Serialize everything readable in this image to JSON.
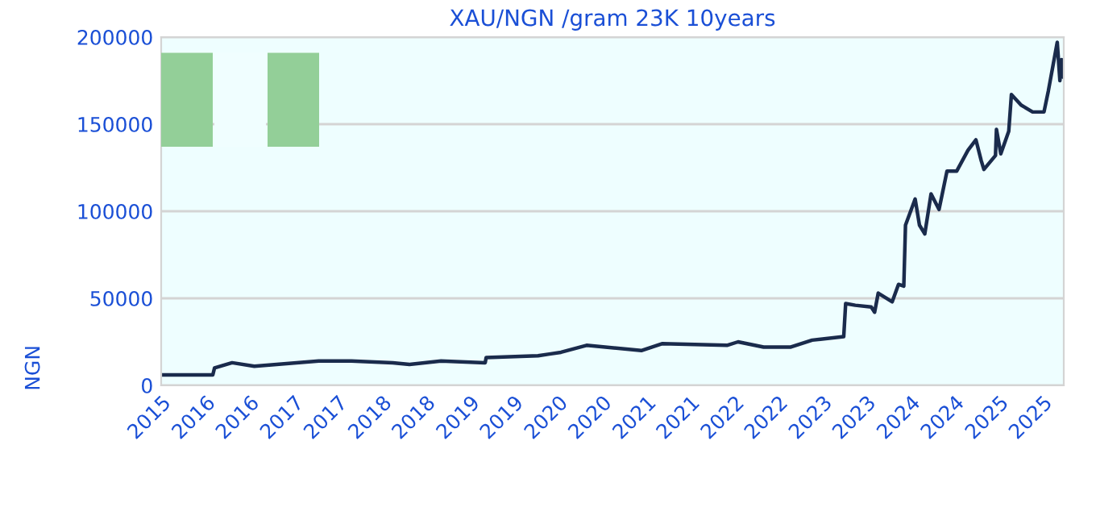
{
  "chart_data": {
    "type": "line",
    "title": "XAU/NGN /gram 23K 10years",
    "ylabel": "NGN",
    "x": [
      "2015-08-01",
      "2016-03-02",
      "2016-03-09",
      "2016-05-21",
      "2016-08-21",
      "2017-05-15",
      "2017-09-27",
      "2018-03-18",
      "2018-05-26",
      "2018-10-04",
      "2019-04-05",
      "2019-04-09",
      "2019-11-10",
      "2019-12-27",
      "2020-02-13",
      "2020-05-29",
      "2021-01-11",
      "2021-04-09",
      "2022-01-01",
      "2022-02-16",
      "2022-06-02",
      "2022-09-23",
      "2022-12-20",
      "2023-04-30",
      "2023-05-08",
      "2023-06-17",
      "2023-08-22",
      "2023-09-05",
      "2023-09-20",
      "2023-11-17",
      "2023-12-13",
      "2024-01-04",
      "2024-01-11",
      "2024-02-20",
      "2024-03-09",
      "2024-03-31",
      "2024-04-26",
      "2024-05-29",
      "2024-07-01",
      "2024-08-10",
      "2024-09-26",
      "2024-10-29",
      "2024-11-20",
      "2024-12-01",
      "2025-01-18",
      "2025-01-22",
      "2025-02-09",
      "2025-03-14",
      "2025-03-25",
      "2025-05-04",
      "2025-06-21",
      "2025-08-07",
      "2025-08-25",
      "2025-10-01",
      "2025-10-12",
      "2025-10-19",
      "2025-10-26"
    ],
    "series": [
      {
        "color": "#1a2b4c",
        "values": [
          6000,
          6000,
          10000,
          13000,
          11000,
          14000,
          14000,
          13000,
          12000,
          14000,
          13000,
          16000,
          17000,
          18000,
          19000,
          23000,
          20000,
          24000,
          23000,
          25000,
          22000,
          22000,
          26000,
          28000,
          47000,
          46000,
          45000,
          42000,
          53000,
          48000,
          58000,
          57000,
          92000,
          107000,
          92000,
          87000,
          110000,
          101000,
          123000,
          123000,
          135000,
          141000,
          129000,
          124000,
          132000,
          147000,
          133000,
          146000,
          167000,
          161000,
          157000,
          157000,
          169000,
          197000,
          175000,
          187000,
          177000
        ]
      }
    ],
    "xlim": [
      "2015-08-01",
      "2025-10-28"
    ],
    "ylim": [
      0,
      200000
    ],
    "xticks": [
      {
        "value": "2015-08",
        "label": "2015"
      },
      {
        "value": "2016-02",
        "label": "2016"
      },
      {
        "value": "2016-08",
        "label": "2016"
      },
      {
        "value": "2017-02",
        "label": "2017"
      },
      {
        "value": "2017-08",
        "label": "2017"
      },
      {
        "value": "2018-02",
        "label": "2018"
      },
      {
        "value": "2018-08",
        "label": "2018"
      },
      {
        "value": "2019-02",
        "label": "2019"
      },
      {
        "value": "2019-08",
        "label": "2019"
      },
      {
        "value": "2020-02",
        "label": "2020"
      },
      {
        "value": "2020-08",
        "label": "2020"
      },
      {
        "value": "2021-02",
        "label": "2021"
      },
      {
        "value": "2021-08",
        "label": "2021"
      },
      {
        "value": "2022-02",
        "label": "2022"
      },
      {
        "value": "2022-08",
        "label": "2022"
      },
      {
        "value": "2023-02",
        "label": "2023"
      },
      {
        "value": "2023-08",
        "label": "2023"
      },
      {
        "value": "2024-02",
        "label": "2024"
      },
      {
        "value": "2024-08",
        "label": "2024"
      },
      {
        "value": "2025-02",
        "label": "2025"
      },
      {
        "value": "2025-08",
        "label": "2025"
      }
    ],
    "yticks": [
      0,
      50000,
      100000,
      150000,
      200000
    ],
    "grid": "y",
    "legend": false,
    "marker": "none",
    "line_style": "solid"
  }
}
